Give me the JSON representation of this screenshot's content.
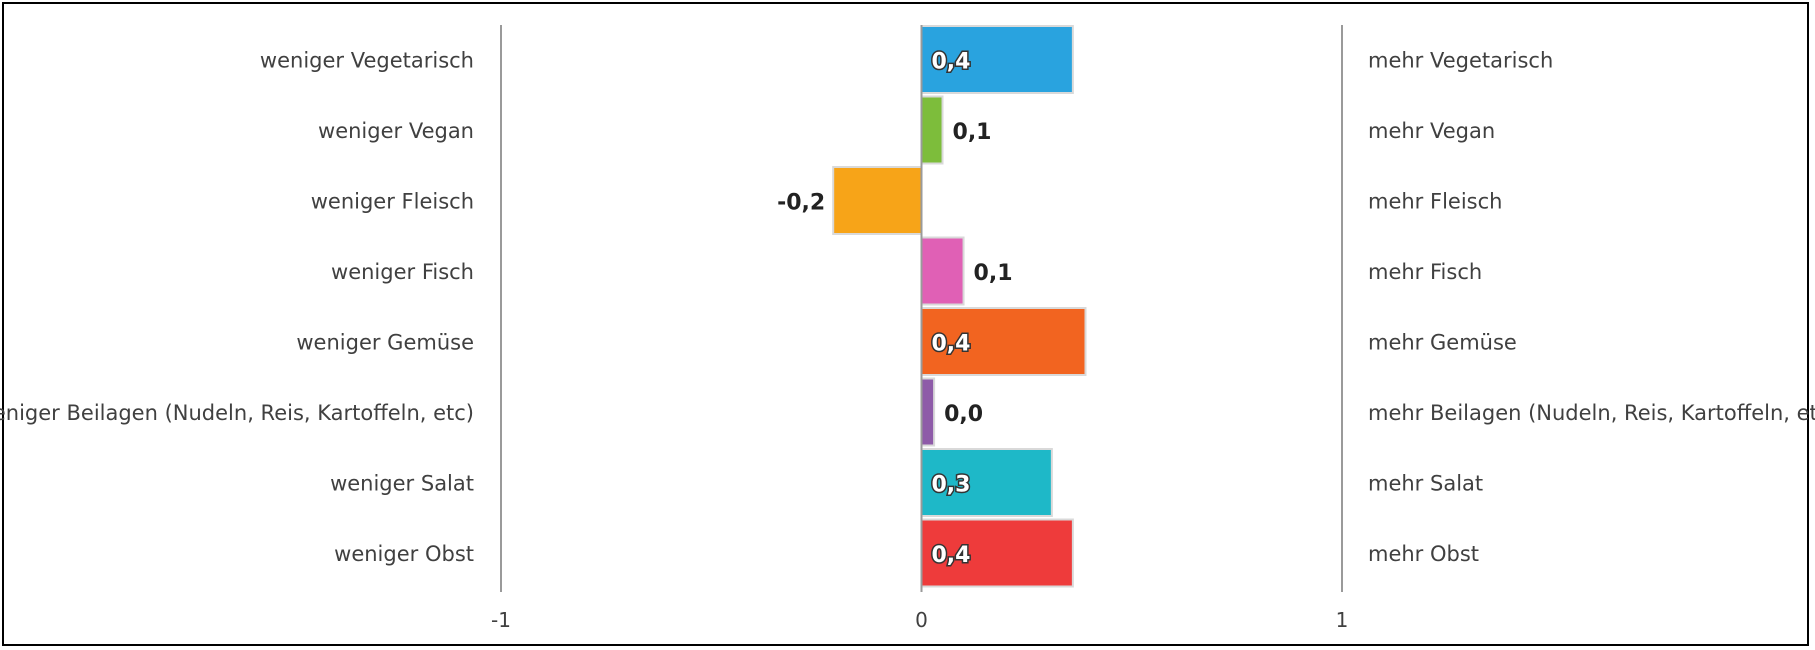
{
  "chart_data": {
    "type": "bar",
    "orientation": "horizontal",
    "categories_left": [
      "weniger Vegetarisch",
      "weniger Vegan",
      "weniger Fleisch",
      "weniger Fisch",
      "weniger Gemüse",
      "weniger Beilagen (Nudeln, Reis, Kartoffeln, etc)",
      "weniger Salat",
      "weniger Obst"
    ],
    "categories_right": [
      "mehr Vegetarisch",
      "mehr Vegan",
      "mehr Fleisch",
      "mehr Fisch",
      "mehr Gemüse",
      "mehr Beilagen (Nudeln, Reis, Kartoffeln, etc)",
      "mehr Salat",
      "mehr Obst"
    ],
    "values": [
      0.36,
      0.05,
      -0.21,
      0.1,
      0.39,
      0.03,
      0.31,
      0.36
    ],
    "value_labels": [
      "0,4",
      "0,1",
      "-0,2",
      "0,1",
      "0,4",
      "0,0",
      "0,3",
      "0,4"
    ],
    "colors": [
      "#29a3df",
      "#7dbd3b",
      "#f7a418",
      "#e060b5",
      "#f26420",
      "#8e5ba8",
      "#1eb8c8",
      "#ee3b3b"
    ],
    "xlim": [
      -1,
      1
    ],
    "xticks": [
      "-1",
      "0",
      "1"
    ],
    "title": "",
    "xlabel": "",
    "ylabel": ""
  }
}
